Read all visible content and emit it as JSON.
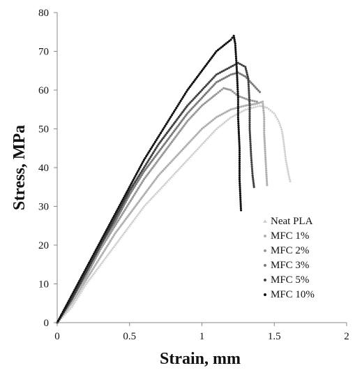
{
  "chart_data": {
    "type": "scatter",
    "xlabel": "Strain, mm",
    "ylabel": "Stress, MPa",
    "xlim": [
      0,
      2
    ],
    "ylim": [
      0,
      80
    ],
    "x_ticks": [
      "0",
      "0.5",
      "1",
      "1.5",
      "2"
    ],
    "y_ticks": [
      "0",
      "10",
      "20",
      "30",
      "40",
      "50",
      "60",
      "70",
      "80"
    ],
    "x_tick_values": [
      0,
      0.5,
      1,
      1.5,
      2
    ],
    "y_tick_values": [
      0,
      10,
      20,
      30,
      40,
      50,
      60,
      70,
      80
    ],
    "grid": false,
    "legend_position": "lower-right",
    "series": [
      {
        "name": "Neat PLA",
        "color": "#cfcfcf",
        "marker": "triangle",
        "points": [
          [
            0,
            0
          ],
          [
            0.1,
            4
          ],
          [
            0.2,
            10
          ],
          [
            0.3,
            15
          ],
          [
            0.4,
            20
          ],
          [
            0.5,
            25
          ],
          [
            0.6,
            30
          ],
          [
            0.7,
            34
          ],
          [
            0.8,
            38
          ],
          [
            0.9,
            42
          ],
          [
            1.0,
            46
          ],
          [
            1.1,
            50
          ],
          [
            1.2,
            53
          ],
          [
            1.3,
            55
          ],
          [
            1.4,
            56
          ],
          [
            1.45,
            55.5
          ],
          [
            1.5,
            54
          ],
          [
            1.53,
            52
          ],
          [
            1.55,
            50
          ],
          [
            1.56,
            48
          ],
          [
            1.57,
            45
          ],
          [
            1.58,
            42
          ],
          [
            1.59,
            40
          ],
          [
            1.6,
            38
          ],
          [
            1.61,
            36.5
          ]
        ]
      },
      {
        "name": "MFC 1%",
        "color": "#b0b0b0",
        "marker": "dot",
        "points": [
          [
            0,
            0
          ],
          [
            0.1,
            5
          ],
          [
            0.2,
            11
          ],
          [
            0.3,
            17
          ],
          [
            0.4,
            23
          ],
          [
            0.5,
            28
          ],
          [
            0.6,
            33
          ],
          [
            0.7,
            38
          ],
          [
            0.8,
            42
          ],
          [
            0.9,
            46
          ],
          [
            1.0,
            50
          ],
          [
            1.1,
            53
          ],
          [
            1.2,
            55
          ],
          [
            1.3,
            56
          ],
          [
            1.38,
            56.5
          ],
          [
            1.42,
            57
          ],
          [
            1.43,
            53
          ],
          [
            1.43,
            49
          ],
          [
            1.44,
            42
          ],
          [
            1.45,
            35.5
          ]
        ]
      },
      {
        "name": "MFC 2%",
        "color": "#999999",
        "marker": "dot",
        "points": [
          [
            0,
            0
          ],
          [
            0.1,
            6
          ],
          [
            0.2,
            12
          ],
          [
            0.3,
            19
          ],
          [
            0.4,
            25
          ],
          [
            0.5,
            31
          ],
          [
            0.6,
            37
          ],
          [
            0.7,
            42
          ],
          [
            0.8,
            47
          ],
          [
            0.9,
            52
          ],
          [
            1.0,
            56
          ],
          [
            1.1,
            59
          ],
          [
            1.15,
            60.5
          ],
          [
            1.2,
            60
          ],
          [
            1.25,
            58.5
          ],
          [
            1.32,
            57.5
          ],
          [
            1.38,
            57
          ]
        ]
      },
      {
        "name": "MFC 3%",
        "color": "#7a7a7a",
        "marker": "dot",
        "points": [
          [
            0,
            0
          ],
          [
            0.1,
            6
          ],
          [
            0.2,
            13
          ],
          [
            0.3,
            20
          ],
          [
            0.4,
            26
          ],
          [
            0.5,
            33
          ],
          [
            0.6,
            39
          ],
          [
            0.7,
            44
          ],
          [
            0.8,
            49
          ],
          [
            0.9,
            54
          ],
          [
            1.0,
            58
          ],
          [
            1.1,
            62
          ],
          [
            1.2,
            64
          ],
          [
            1.25,
            64.5
          ],
          [
            1.3,
            63.5
          ],
          [
            1.35,
            61.5
          ],
          [
            1.4,
            59.5
          ]
        ]
      },
      {
        "name": "MFC 5%",
        "color": "#404040",
        "marker": "dot",
        "points": [
          [
            0,
            0
          ],
          [
            0.1,
            6
          ],
          [
            0.2,
            13
          ],
          [
            0.3,
            20
          ],
          [
            0.4,
            27
          ],
          [
            0.5,
            34
          ],
          [
            0.6,
            40
          ],
          [
            0.7,
            46
          ],
          [
            0.8,
            51
          ],
          [
            0.9,
            56
          ],
          [
            1.0,
            60
          ],
          [
            1.1,
            64
          ],
          [
            1.2,
            66
          ],
          [
            1.25,
            67
          ],
          [
            1.3,
            66
          ],
          [
            1.32,
            63
          ],
          [
            1.33,
            56
          ],
          [
            1.33,
            50
          ],
          [
            1.34,
            43
          ],
          [
            1.35,
            38
          ],
          [
            1.36,
            35
          ]
        ]
      },
      {
        "name": "MFC 10%",
        "color": "#111111",
        "marker": "dot",
        "points": [
          [
            0,
            0
          ],
          [
            0.1,
            7
          ],
          [
            0.2,
            14
          ],
          [
            0.3,
            21
          ],
          [
            0.4,
            28
          ],
          [
            0.5,
            35
          ],
          [
            0.6,
            42
          ],
          [
            0.7,
            48
          ],
          [
            0.8,
            54
          ],
          [
            0.9,
            60
          ],
          [
            1.0,
            65
          ],
          [
            1.1,
            70
          ],
          [
            1.2,
            73
          ],
          [
            1.22,
            74
          ],
          [
            1.23,
            72
          ],
          [
            1.24,
            66
          ],
          [
            1.25,
            58
          ],
          [
            1.25,
            53
          ],
          [
            1.26,
            45
          ],
          [
            1.26,
            37
          ],
          [
            1.27,
            29
          ]
        ]
      }
    ]
  }
}
